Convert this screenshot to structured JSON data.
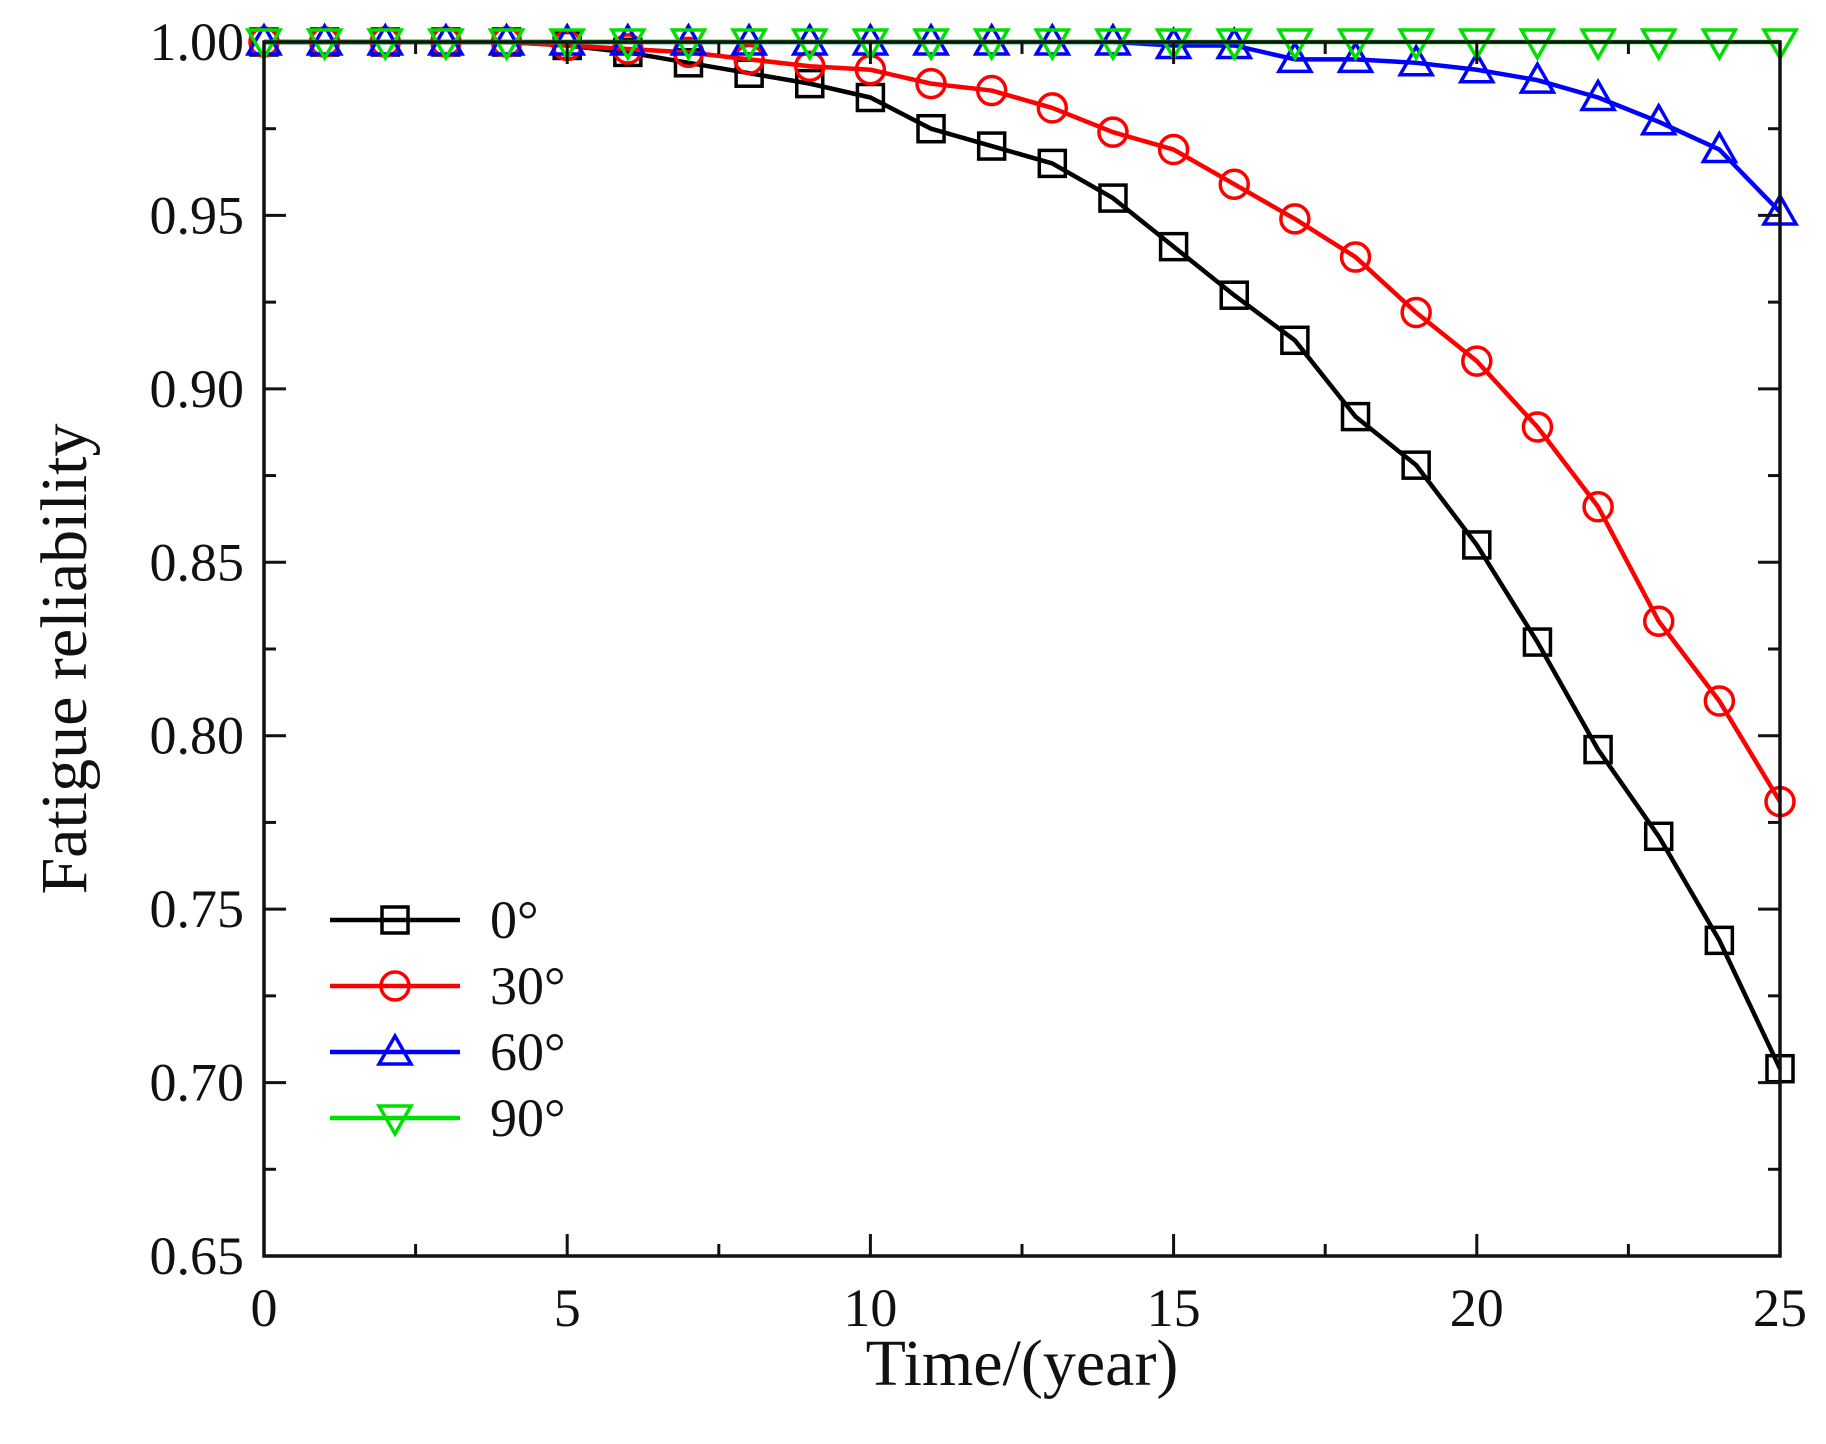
{
  "chart_data": {
    "type": "line",
    "title": "",
    "xlabel": "Time/(year)",
    "ylabel": "Fatigue reliability",
    "xlim": [
      0,
      25
    ],
    "ylim": [
      0.65,
      1.0
    ],
    "x_ticks": [
      0,
      5,
      10,
      15,
      20,
      25
    ],
    "x_tick_labels": [
      "0",
      "5",
      "10",
      "15",
      "20",
      "25"
    ],
    "x_minor_ticks": [
      2.5,
      7.5,
      12.5,
      17.5,
      22.5
    ],
    "y_ticks": [
      0.65,
      0.7,
      0.75,
      0.8,
      0.85,
      0.9,
      0.95,
      1.0
    ],
    "y_tick_labels": [
      "0.65",
      "0.70",
      "0.75",
      "0.80",
      "0.85",
      "0.90",
      "0.95",
      "1.00"
    ],
    "y_minor_ticks": [
      0.675,
      0.725,
      0.775,
      0.825,
      0.875,
      0.925,
      0.975
    ],
    "grid": false,
    "legend_position": "bottom-left",
    "x": [
      0,
      1,
      2,
      3,
      4,
      5,
      6,
      7,
      8,
      9,
      10,
      11,
      12,
      13,
      14,
      15,
      16,
      17,
      18,
      19,
      20,
      21,
      22,
      23,
      24,
      25
    ],
    "series": [
      {
        "name": "0°",
        "color": "#000000",
        "marker": "square",
        "values": [
          1.0,
          1.0,
          1.0,
          1.0,
          1.0,
          0.999,
          0.997,
          0.994,
          0.991,
          0.988,
          0.984,
          0.975,
          0.97,
          0.965,
          0.955,
          0.941,
          0.927,
          0.914,
          0.892,
          0.878,
          0.855,
          0.827,
          0.796,
          0.771,
          0.741,
          0.704
        ]
      },
      {
        "name": "30°",
        "color": "#ff0000",
        "marker": "circle",
        "values": [
          1.0,
          1.0,
          1.0,
          1.0,
          1.0,
          0.999,
          0.998,
          0.997,
          0.995,
          0.993,
          0.992,
          0.988,
          0.986,
          0.981,
          0.974,
          0.969,
          0.959,
          0.949,
          0.938,
          0.922,
          0.908,
          0.889,
          0.866,
          0.833,
          0.81,
          0.781
        ]
      },
      {
        "name": "60°",
        "color": "#0000ff",
        "marker": "triangle-up",
        "values": [
          1.0,
          1.0,
          1.0,
          1.0,
          1.0,
          1.0,
          1.0,
          1.0,
          1.0,
          1.0,
          1.0,
          1.0,
          1.0,
          1.0,
          1.0,
          0.999,
          0.999,
          0.995,
          0.995,
          0.994,
          0.992,
          0.989,
          0.984,
          0.977,
          0.969,
          0.951
        ]
      },
      {
        "name": "90°",
        "color": "#00e000",
        "marker": "triangle-down",
        "values": [
          1.0,
          1.0,
          1.0,
          1.0,
          1.0,
          1.0,
          1.0,
          1.0,
          1.0,
          1.0,
          1.0,
          1.0,
          1.0,
          1.0,
          1.0,
          1.0,
          1.0,
          1.0,
          1.0,
          1.0,
          1.0,
          1.0,
          1.0,
          1.0,
          1.0,
          1.0
        ]
      }
    ]
  }
}
